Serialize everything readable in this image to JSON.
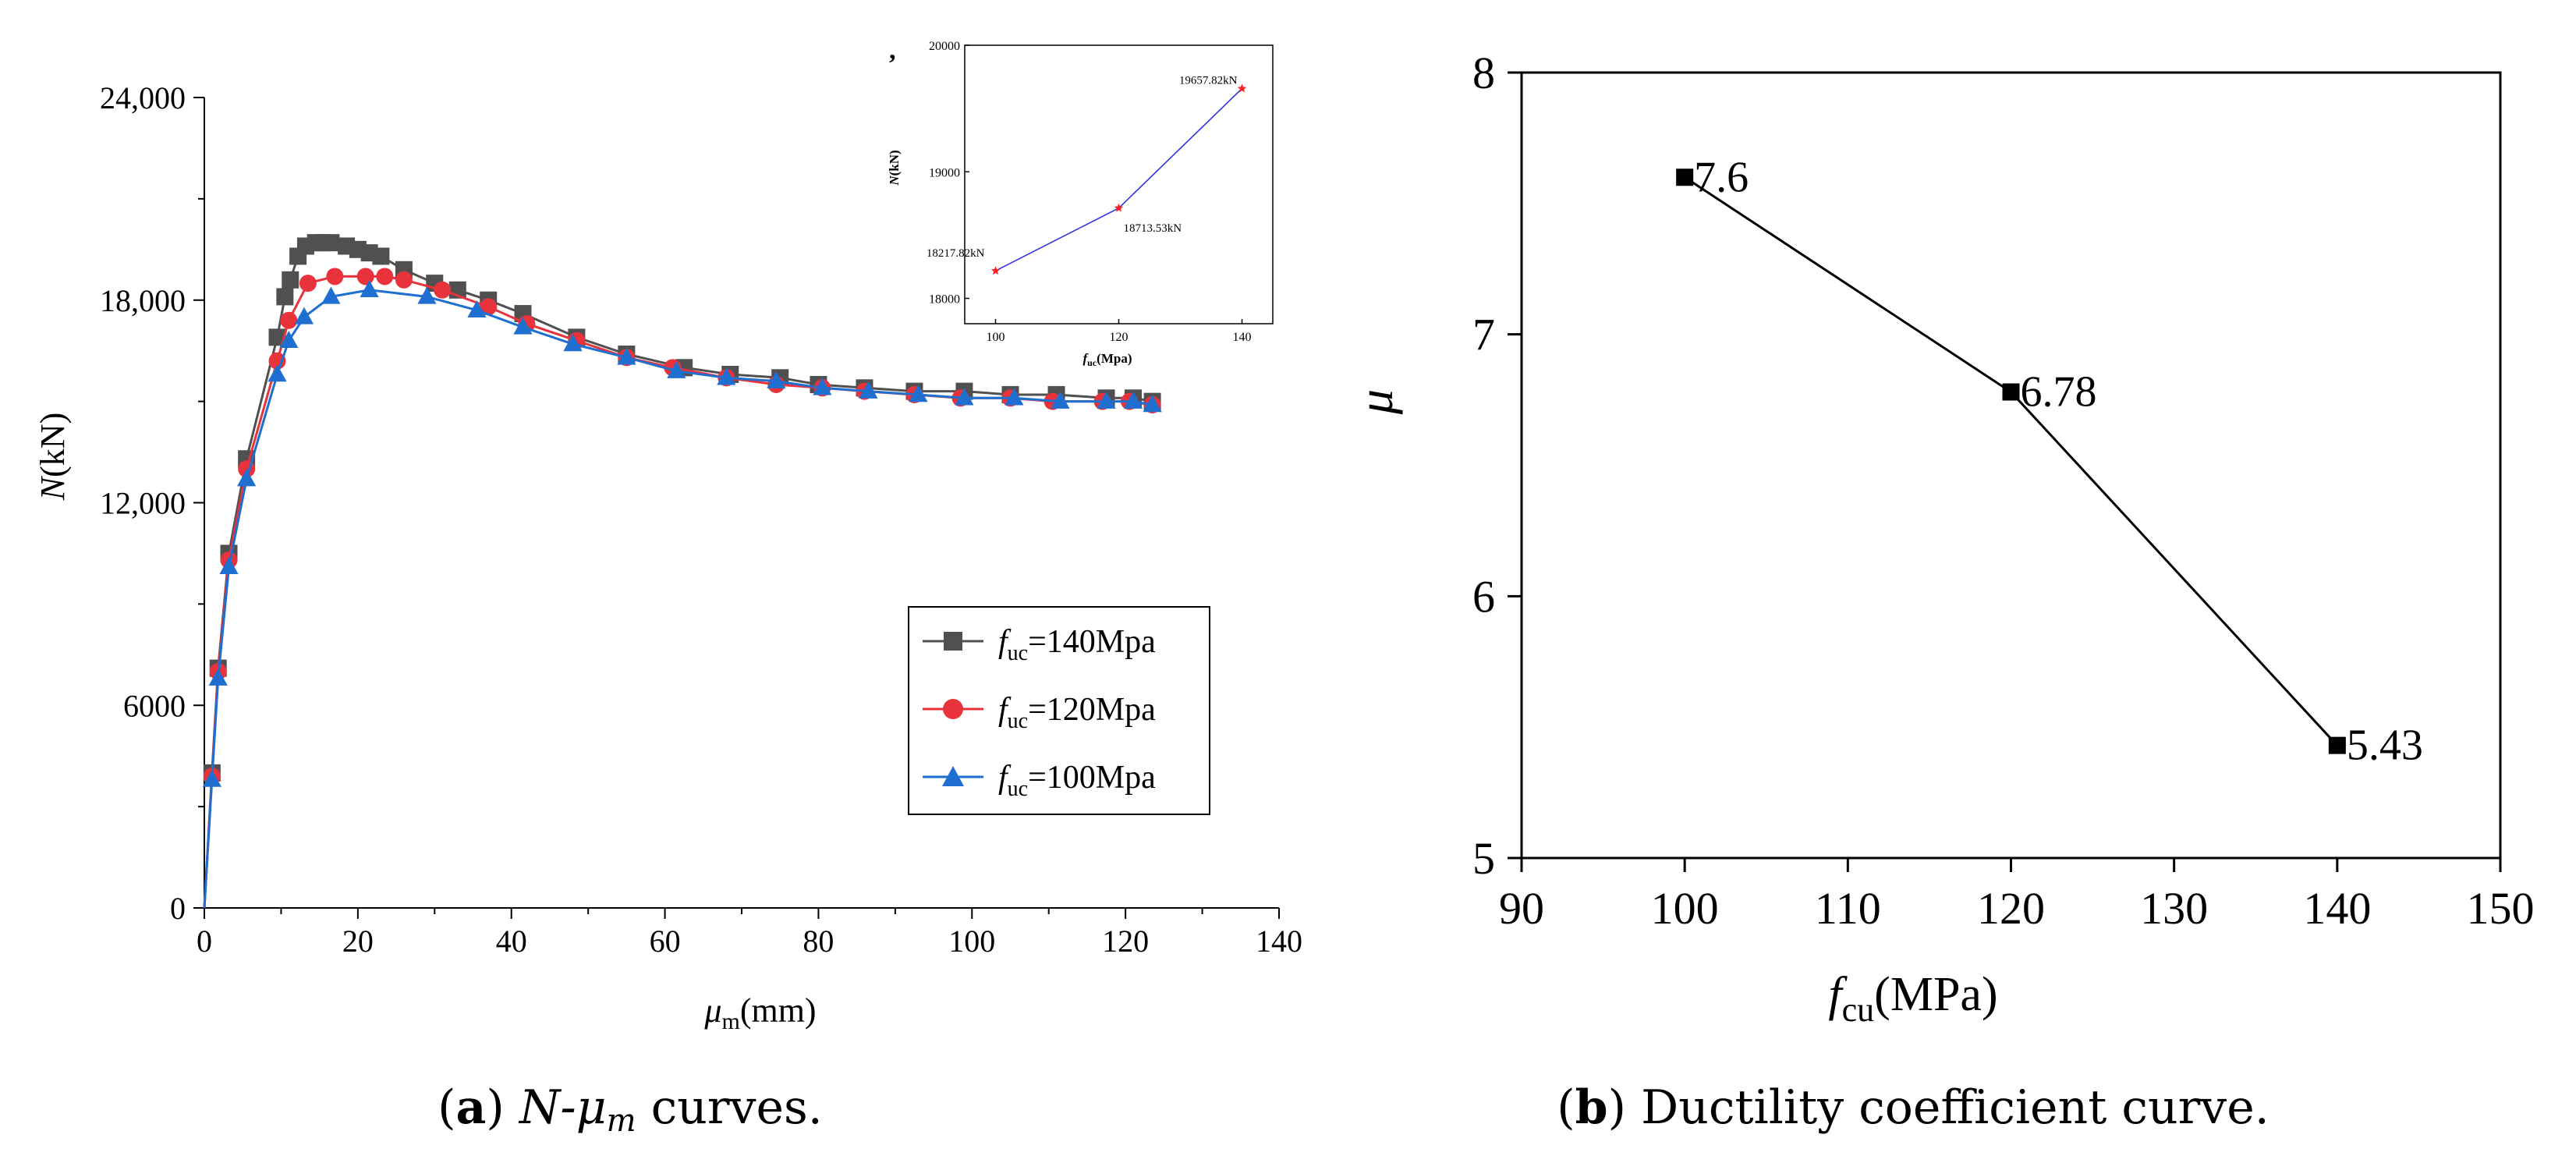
{
  "chart_data": [
    {
      "id": "a",
      "type": "line",
      "xlabel_sym": "μ",
      "xlabel_sub": "m",
      "xlabel_unit": "(mm)",
      "ylabel_sym": "N",
      "ylabel_unit": "(kN)",
      "xlim": [
        0,
        140
      ],
      "ylim": [
        0,
        24000
      ],
      "xticks": [
        0,
        20,
        40,
        60,
        80,
        100,
        120,
        140
      ],
      "xtick_labels": [
        "0",
        "20",
        "40",
        "60",
        "80",
        "100",
        "120",
        "140"
      ],
      "yticks": [
        0,
        6000,
        12000,
        18000,
        24000
      ],
      "ytick_labels": [
        "0",
        "6000",
        "12,000",
        "18,000",
        "24,000"
      ],
      "legend_position": "center-right",
      "series": [
        {
          "name": "fuc=140Mpa",
          "label_sym": "f",
          "label_sub": "uc",
          "label_rest": "=140Mpa",
          "color": "#505050",
          "marker": "square",
          "x": [
            0,
            1,
            1.8,
            3.2,
            5.5,
            9.5,
            10.5,
            11.2,
            12.2,
            13.2,
            14.5,
            15.5,
            16.5,
            18.5,
            20,
            21.5,
            23,
            26,
            30,
            33,
            37,
            41.5,
            48.5,
            55,
            62.5,
            68.5,
            75,
            80,
            86,
            92.5,
            99,
            105,
            111,
            117.5,
            121,
            123.5
          ],
          "y": [
            0,
            4000,
            7100,
            10500,
            13300,
            16900,
            18100,
            18600,
            19300,
            19600,
            19700,
            19700,
            19700,
            19600,
            19500,
            19400,
            19300,
            18900,
            18500,
            18300,
            18000,
            17600,
            16900,
            16400,
            16000,
            15800,
            15700,
            15500,
            15400,
            15300,
            15300,
            15200,
            15200,
            15100,
            15100,
            15000
          ]
        },
        {
          "name": "fuc=120Mpa",
          "label_sym": "f",
          "label_sub": "uc",
          "label_rest": "=120Mpa",
          "color": "#e8323c",
          "marker": "circle",
          "x": [
            0,
            1,
            1.8,
            3.2,
            5.5,
            9.5,
            11,
            13.5,
            17,
            21,
            23.5,
            26,
            31,
            37,
            42,
            48.5,
            55,
            61,
            68,
            74.5,
            80.5,
            86,
            92.5,
            98.5,
            105,
            110.5,
            117,
            120.5,
            123.5
          ],
          "y": [
            0,
            3900,
            7000,
            10300,
            13000,
            16200,
            17400,
            18500,
            18700,
            18700,
            18700,
            18600,
            18300,
            17800,
            17300,
            16800,
            16300,
            16000,
            15700,
            15500,
            15400,
            15300,
            15200,
            15100,
            15100,
            15000,
            15000,
            15000,
            14900
          ]
        },
        {
          "name": "fuc=100Mpa",
          "label_sym": "f",
          "label_sub": "uc",
          "label_rest": "=100Mpa",
          "color": "#1f6fd1",
          "marker": "triangle",
          "x": [
            0,
            1,
            1.8,
            3.2,
            5.5,
            9.5,
            11,
            13,
            16.5,
            21.5,
            29,
            35.5,
            41.5,
            48,
            55,
            61.5,
            68,
            74.5,
            80.5,
            86.5,
            93,
            99,
            105.5,
            111.5,
            117.5,
            121,
            123.5
          ],
          "y": [
            0,
            3800,
            6800,
            10100,
            12700,
            15800,
            16800,
            17500,
            18100,
            18300,
            18100,
            17700,
            17200,
            16700,
            16300,
            15900,
            15700,
            15600,
            15400,
            15300,
            15200,
            15100,
            15100,
            15000,
            15000,
            15000,
            14900
          ]
        }
      ],
      "inset": {
        "type": "line",
        "xlabel_sym": "f",
        "xlabel_sub": "uc",
        "xlabel_unit": "(Mpa)",
        "ylabel_sym": "N",
        "ylabel_unit": "(kN)",
        "top_mark": ",",
        "xlim": [
          95,
          145
        ],
        "ylim": [
          17800,
          20000
        ],
        "xticks": [
          100,
          120,
          140
        ],
        "xtick_labels": [
          "100",
          "120",
          "140"
        ],
        "yticks": [
          18000,
          19000,
          20000
        ],
        "ytick_labels": [
          "18000",
          "19000",
          "20000"
        ],
        "line_color": "#3333dd",
        "marker_color": "#ff2020",
        "x": [
          100,
          120,
          140
        ],
        "y": [
          18217.82,
          18713.53,
          19657.82
        ],
        "point_labels": [
          "18217.82kN",
          "18713.53kN",
          "19657.82kN"
        ]
      }
    },
    {
      "id": "b",
      "type": "line",
      "xlabel_sym": "f",
      "xlabel_sub": "cu",
      "xlabel_unit": "(MPa)",
      "ylabel": "μ",
      "xlim": [
        90,
        150
      ],
      "ylim": [
        5,
        8
      ],
      "xticks": [
        90,
        100,
        110,
        120,
        130,
        140,
        150
      ],
      "xtick_labels": [
        "90",
        "100",
        "110",
        "120",
        "130",
        "140",
        "150"
      ],
      "yticks": [
        5,
        6,
        7,
        8
      ],
      "ytick_labels": [
        "5",
        "6",
        "7",
        "8"
      ],
      "color": "#000000",
      "marker": "square",
      "x": [
        100,
        120,
        140
      ],
      "y": [
        7.6,
        6.78,
        5.43
      ],
      "point_labels": [
        "7.6",
        "6.78",
        "5.43"
      ]
    }
  ],
  "captions": {
    "a": {
      "letter": "a",
      "sym": "N-μ",
      "sub": "m",
      "rest": " curves."
    },
    "b": {
      "letter": "b",
      "text": " Ductility coefficient curve."
    }
  }
}
